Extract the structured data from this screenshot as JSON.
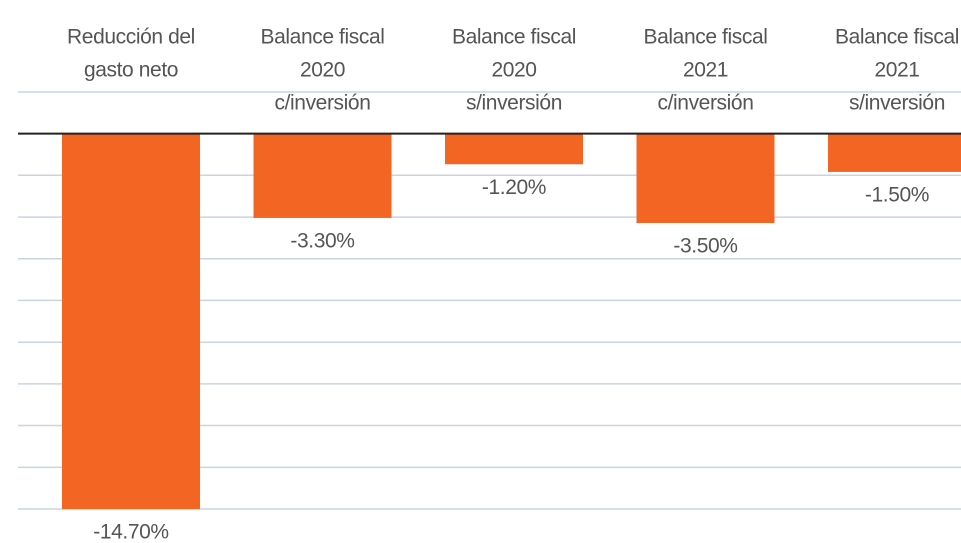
{
  "chart_data": {
    "type": "bar",
    "categories": [
      [
        "Reducción del",
        "gasto neto"
      ],
      [
        "Balance fiscal",
        "2020",
        "c/inversión"
      ],
      [
        "Balance fiscal",
        "2020",
        "s/inversión"
      ],
      [
        "Balance fiscal",
        "2021",
        "c/inversión"
      ],
      [
        "Balance fiscal",
        "2021",
        "s/inversión"
      ]
    ],
    "values": [
      -14.7,
      -3.3,
      -1.2,
      -3.5,
      -1.5
    ],
    "value_labels": [
      "-14.70%",
      "-3.30%",
      "-1.20%",
      "-3.50%",
      "-1.50%"
    ],
    "color": "#f26522",
    "ylim": [
      -14.7,
      1.63
    ],
    "yticks": [
      1.63,
      -1.63,
      -3.27,
      -4.9,
      -6.53,
      -8.17,
      -9.8,
      -11.43,
      -13.07,
      -14.7
    ],
    "grid": true
  }
}
